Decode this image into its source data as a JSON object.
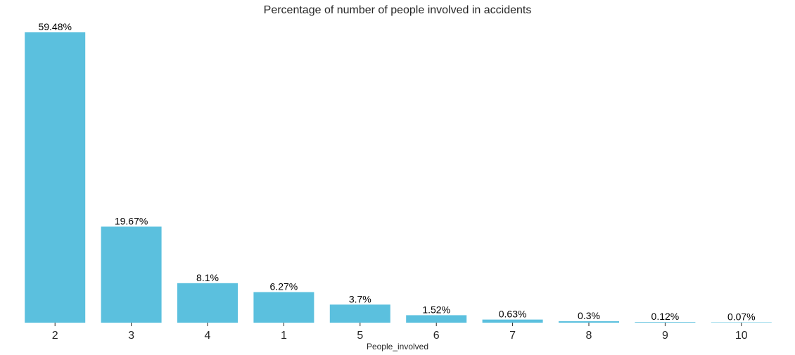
{
  "chart_data": {
    "type": "bar",
    "title": "Percentage of number of people involved in accidents",
    "xlabel": "People_involved",
    "ylabel": "",
    "categories": [
      "2",
      "3",
      "4",
      "1",
      "5",
      "6",
      "7",
      "8",
      "9",
      "10"
    ],
    "values": [
      59.48,
      19.67,
      8.1,
      6.27,
      3.7,
      1.52,
      0.63,
      0.3,
      0.12,
      0.07
    ],
    "value_labels": [
      "59.48%",
      "19.67%",
      "8.1%",
      "6.27%",
      "3.7%",
      "1.52%",
      "0.63%",
      "0.3%",
      "0.12%",
      "0.07%"
    ],
    "ylim": [
      0,
      60
    ],
    "grid": false,
    "bar_color": "#5bc0de"
  }
}
